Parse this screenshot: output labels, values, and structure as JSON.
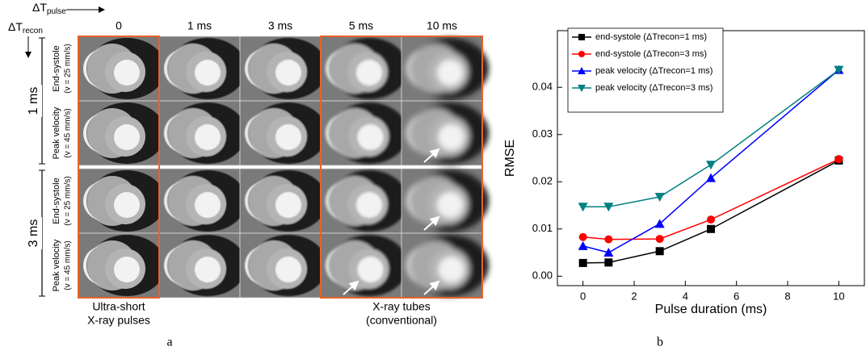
{
  "panel_a": {
    "pulse_label": "ΔT",
    "pulse_sub": "pulse",
    "recon_label": "ΔT",
    "recon_sub": "recon",
    "columns": [
      "0",
      "1 ms",
      "3 ms",
      "5 ms",
      "10 ms"
    ],
    "groups": [
      "1 ms",
      "3 ms"
    ],
    "rows": [
      {
        "label": "End-systole",
        "sub": "(v = 25 mm/s)"
      },
      {
        "label": "Peak velocity",
        "sub": "(v = 45 mm/s)"
      }
    ],
    "captions": [
      [
        "Ultra-short",
        "X-ray pulses"
      ],
      [
        "X-ray tubes",
        "(conventional)"
      ]
    ],
    "panel_label": "a"
  },
  "chart_data": {
    "type": "line",
    "panel_label": "b",
    "x_label": "Pulse duration (ms)",
    "y_label": "RMSE",
    "x": [
      0,
      1,
      3,
      5,
      10
    ],
    "series": [
      {
        "name": "end-systole (ΔTrecon=1 ms)",
        "color": "#000000",
        "marker": "square",
        "values": [
          0.0028,
          0.0029,
          0.0053,
          0.01,
          0.0245
        ]
      },
      {
        "name": "end-systole (ΔTrecon=3 ms)",
        "color": "#ff0000",
        "marker": "circle",
        "values": [
          0.0083,
          0.0078,
          0.0079,
          0.012,
          0.0248
        ]
      },
      {
        "name": "peak velocity (ΔTrecon=1 ms)",
        "color": "#0000ff",
        "marker": "triangle-up",
        "values": [
          0.0064,
          0.005,
          0.0111,
          0.0208,
          0.0437
        ]
      },
      {
        "name": "peak velocity (ΔTrecon=3 ms)",
        "color": "#008080",
        "marker": "triangle-down",
        "values": [
          0.0147,
          0.0147,
          0.0168,
          0.0236,
          0.0437
        ]
      }
    ],
    "xlim": [
      -1,
      11
    ],
    "ylim": [
      -0.002,
      0.052
    ],
    "xticks": [
      0,
      2,
      4,
      6,
      8,
      10
    ],
    "yticks": [
      {
        "value": 0,
        "label": "0.00"
      },
      0.01,
      0.02,
      0.03,
      0.04
    ],
    "legend": "upper left"
  }
}
